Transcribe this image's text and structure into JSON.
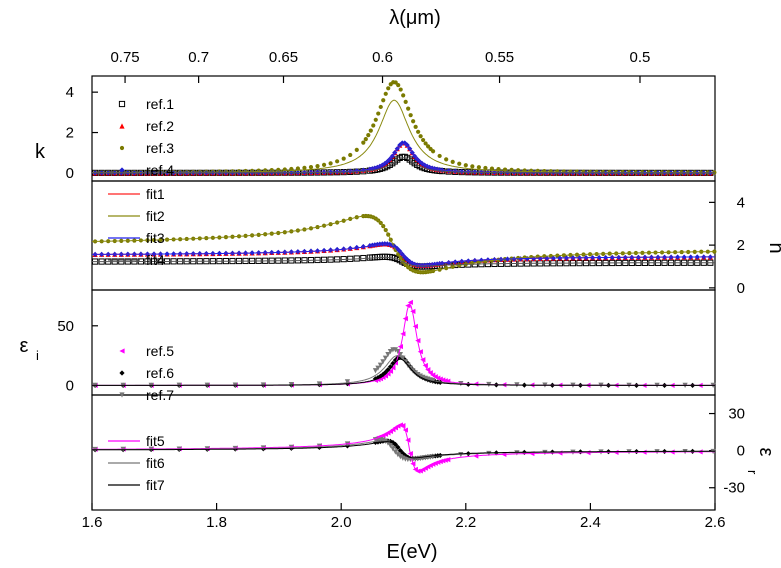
{
  "chart_data": {
    "type": "scatter",
    "x_axis": {
      "label": "E(eV)",
      "range": [
        1.6,
        2.6
      ],
      "ticks": [
        "1.6",
        "1.8",
        "2.0",
        "2.2",
        "2.4",
        "2.6"
      ]
    },
    "top_axis": {
      "label": "λ(μm)",
      "ticks": [
        "0.75",
        "0.7",
        "0.65",
        "0.6",
        "0.55",
        "0.5"
      ]
    },
    "panels": [
      {
        "id": "k",
        "ylabel": "k",
        "side": "left",
        "ylim": [
          -0.4,
          4.8
        ],
        "ticks": [
          "0",
          "2",
          "4"
        ]
      },
      {
        "id": "n",
        "ylabel": "n",
        "side": "right",
        "ylim": [
          -0.1,
          5.0
        ],
        "ticks": [
          "0",
          "2",
          "4"
        ]
      },
      {
        "id": "eps_i",
        "ylabel": "ε",
        "ylabel_sub": "i",
        "side": "left",
        "ylim": [
          -8,
          80
        ],
        "ticks": [
          "0",
          "50"
        ]
      },
      {
        "id": "eps_r",
        "ylabel": "ε",
        "ylabel_sub": "r",
        "side": "right",
        "ylim": [
          -48,
          45
        ],
        "ticks": [
          "-30",
          "0",
          "30"
        ]
      }
    ],
    "legend_top": {
      "ref": [
        {
          "label": "ref.1",
          "color": "#000000",
          "marker": "open-square"
        },
        {
          "label": "ref.2",
          "color": "#ff0000",
          "marker": "triangle"
        },
        {
          "label": "ref.3",
          "color": "#7a7a00",
          "marker": "dot"
        },
        {
          "label": "ref.4",
          "color": "#1f1fd0",
          "marker": "diamond"
        }
      ],
      "fit": [
        {
          "label": "fit1",
          "color": "#ff2020"
        },
        {
          "label": "fit2",
          "color": "#8a8a10"
        },
        {
          "label": "fit3",
          "color": "#2222ee"
        },
        {
          "label": "fit4",
          "color": "#555555"
        }
      ]
    },
    "legend_bottom": {
      "ref": [
        {
          "label": "ref.5",
          "color": "#ff00ff",
          "marker": "triangle-left"
        },
        {
          "label": "ref.6",
          "color": "#000000",
          "marker": "diamond"
        },
        {
          "label": "ref.7",
          "color": "#777777",
          "marker": "triangle-down"
        }
      ],
      "fit": [
        {
          "label": "fit5",
          "color": "#ff00ff"
        },
        {
          "label": "fit6",
          "color": "#777777"
        },
        {
          "label": "fit7",
          "color": "#000000"
        }
      ]
    },
    "resonance": {
      "k": [
        {
          "series": "ref.1",
          "E0": 2.1,
          "width": 0.022,
          "base": 0.0,
          "peak": 0.8
        },
        {
          "series": "ref.2",
          "E0": 2.1,
          "width": 0.02,
          "base": 0.0,
          "peak": 1.5
        },
        {
          "series": "ref.3",
          "E0": 2.085,
          "width": 0.035,
          "base": 0.0,
          "peak": 4.5
        },
        {
          "series": "ref.4",
          "E0": 2.1,
          "width": 0.02,
          "base": 0.0,
          "peak": 1.5
        },
        {
          "series": "fit1",
          "E0": 2.1,
          "width": 0.021,
          "base": 0.0,
          "peak": 1.45
        },
        {
          "series": "fit2",
          "E0": 2.085,
          "width": 0.03,
          "base": 0.0,
          "peak": 3.6
        },
        {
          "series": "fit3",
          "E0": 2.1,
          "width": 0.021,
          "base": 0.0,
          "peak": 1.45
        },
        {
          "series": "fit4",
          "E0": 2.1,
          "width": 0.023,
          "base": 0.0,
          "peak": 0.75
        }
      ],
      "n": [
        {
          "series": "ref.1",
          "E0": 2.1,
          "width": 0.03,
          "base": 1.2,
          "amp": 0.45
        },
        {
          "series": "ref.2",
          "E0": 2.1,
          "width": 0.03,
          "base": 1.5,
          "amp": 1.0
        },
        {
          "series": "ref.3",
          "E0": 2.085,
          "width": 0.045,
          "base": 1.9,
          "amp": 2.6
        },
        {
          "series": "ref.4",
          "E0": 2.1,
          "width": 0.03,
          "base": 1.5,
          "amp": 1.0
        },
        {
          "series": "fit1",
          "E0": 2.1,
          "width": 0.03,
          "base": 1.5,
          "amp": 0.95
        },
        {
          "series": "fit2",
          "E0": 2.085,
          "width": 0.045,
          "base": 1.9,
          "amp": 2.6
        },
        {
          "series": "fit3",
          "E0": 2.1,
          "width": 0.03,
          "base": 1.5,
          "amp": 0.95
        },
        {
          "series": "fit4",
          "E0": 2.1,
          "width": 0.03,
          "base": 1.2,
          "amp": 0.4
        }
      ],
      "eps_i": [
        {
          "series": "ref.5",
          "E0": 2.11,
          "width": 0.014,
          "base": 0,
          "peak": 70
        },
        {
          "series": "ref.6",
          "E0": 2.095,
          "width": 0.022,
          "base": 0,
          "peak": 24
        },
        {
          "series": "ref.7",
          "E0": 2.085,
          "width": 0.025,
          "base": 0,
          "peak": 30
        },
        {
          "series": "fit5",
          "E0": 2.11,
          "width": 0.014,
          "base": 0,
          "peak": 68
        },
        {
          "series": "fit6",
          "E0": 2.09,
          "width": 0.025,
          "base": 0,
          "peak": 25
        },
        {
          "series": "fit7",
          "E0": 2.095,
          "width": 0.022,
          "base": 0,
          "peak": 22
        }
      ],
      "eps_r": [
        {
          "series": "ref.5",
          "E0": 2.11,
          "width": 0.014,
          "base": 0,
          "amp": 37
        },
        {
          "series": "ref.6",
          "E0": 2.095,
          "width": 0.022,
          "base": 0,
          "amp": 14
        },
        {
          "series": "ref.7",
          "E0": 2.085,
          "width": 0.025,
          "base": 0,
          "amp": 16
        },
        {
          "series": "fit5",
          "E0": 2.11,
          "width": 0.014,
          "base": 0,
          "amp": 36
        },
        {
          "series": "fit6",
          "E0": 2.09,
          "width": 0.025,
          "base": 0,
          "amp": 14
        },
        {
          "series": "fit7",
          "E0": 2.095,
          "width": 0.022,
          "base": 0,
          "amp": 13
        }
      ]
    }
  }
}
